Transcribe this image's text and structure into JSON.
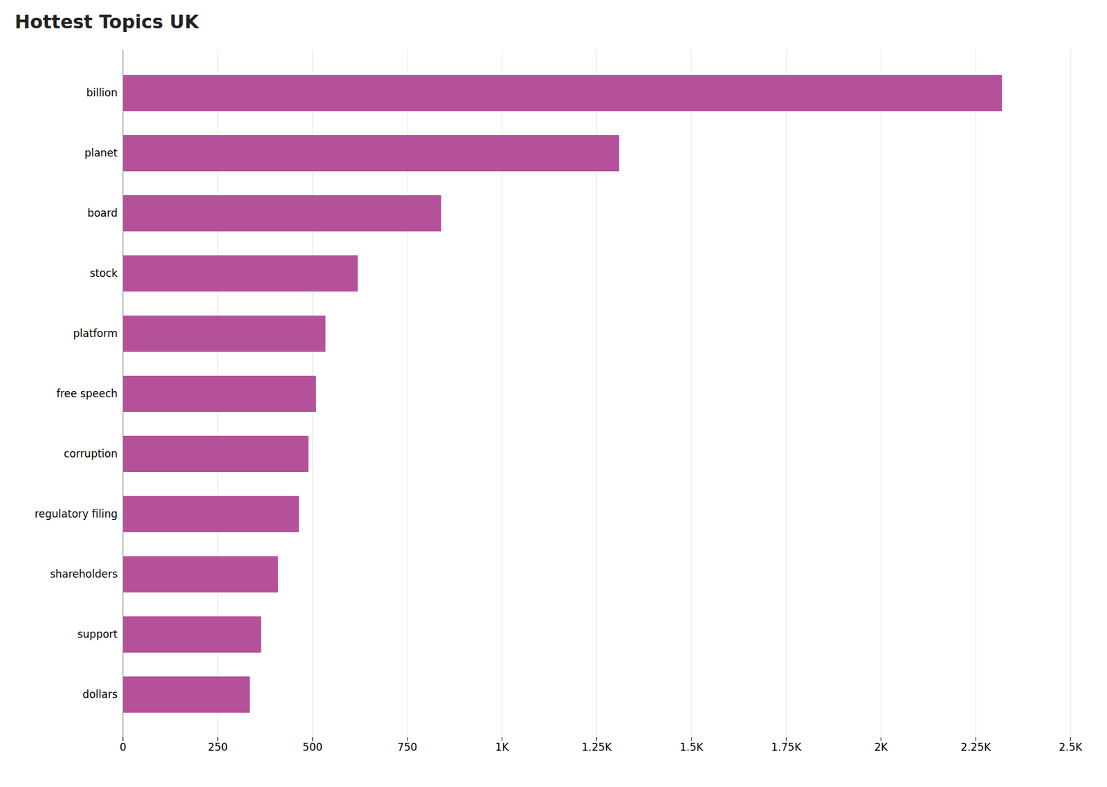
{
  "chart_data": {
    "type": "bar",
    "title": "Hottest Topics UK",
    "orientation": "horizontal",
    "categories": [
      "dollars",
      "support",
      "shareholders",
      "regulatory filing",
      "corruption",
      "free speech",
      "platform",
      "stock",
      "board",
      "planet",
      "billion"
    ],
    "values": [
      335,
      365,
      410,
      465,
      490,
      510,
      535,
      620,
      840,
      1310,
      2320
    ],
    "color": "#b5519a",
    "xlim": [
      0,
      2500
    ],
    "xticks": [
      0,
      250,
      500,
      750,
      {
        "value": 1000,
        "label": "1K"
      },
      {
        "value": 1250,
        "label": "1.25K"
      },
      {
        "value": 1500,
        "label": "1.5K"
      },
      {
        "value": 1750,
        "label": "1.75K"
      },
      {
        "value": 2000,
        "label": "2K"
      },
      {
        "value": 2250,
        "label": "2.25K"
      },
      {
        "value": 2500,
        "label": "2.5K"
      }
    ],
    "grid": true
  }
}
